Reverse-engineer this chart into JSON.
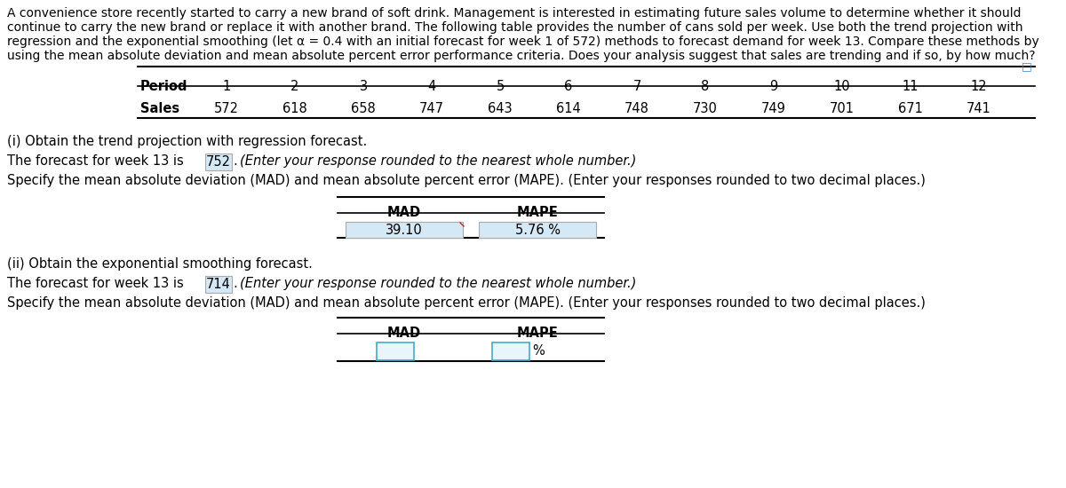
{
  "intro_line1": "A convenience store recently started to carry a new brand of soft drink. Management is interested in estimating future sales volume to determine whether it should",
  "intro_line2": "continue to carry the new brand or replace it with another brand. The following table provides the number of cans sold per week. Use both the trend projection with",
  "intro_line3": "regression and the exponential smoothing (let α = 0.4 with an initial forecast for week 1 of 572) methods to forecast demand for week 13. Compare these methods by",
  "intro_line4": "using the mean absolute deviation and mean absolute percent error performance criteria. Does your analysis suggest that sales are trending and if so, by how much?",
  "periods": [
    1,
    2,
    3,
    4,
    5,
    6,
    7,
    8,
    9,
    10,
    11,
    12
  ],
  "sales": [
    572,
    618,
    658,
    747,
    643,
    614,
    748,
    730,
    749,
    701,
    671,
    741
  ],
  "section_i_title": "(i) Obtain the trend projection with regression forecast.",
  "section_i_forecast_pre": "The forecast for week 13 is ",
  "section_i_forecast_value": "752",
  "section_i_forecast_italic": "(Enter your response rounded to the nearest whole number.)",
  "section_i_specify": "Specify the mean absolute deviation (MAD) and mean absolute percent error (MAPE). (Enter your responses rounded to two decimal places.)",
  "section_i_mad": "39.10",
  "section_i_mape": "5.76 %",
  "section_ii_title": "(ii) Obtain the exponential smoothing forecast.",
  "section_ii_forecast_pre": "The forecast for week 13 is ",
  "section_ii_forecast_value": "714",
  "section_ii_forecast_italic": "(Enter your response rounded to the nearest whole number.)",
  "section_ii_specify": "Specify the mean absolute deviation (MAD) and mean absolute percent error (MAPE). (Enter your responses rounded to two decimal places.)",
  "bg_color": "#ffffff",
  "text_color": "#000000",
  "highlight_color_filled": "#d4e8f5",
  "highlight_color_empty": "#d4eef5",
  "font_size_intro": 10.0,
  "font_size_body": 10.5,
  "font_size_table": 10.5
}
